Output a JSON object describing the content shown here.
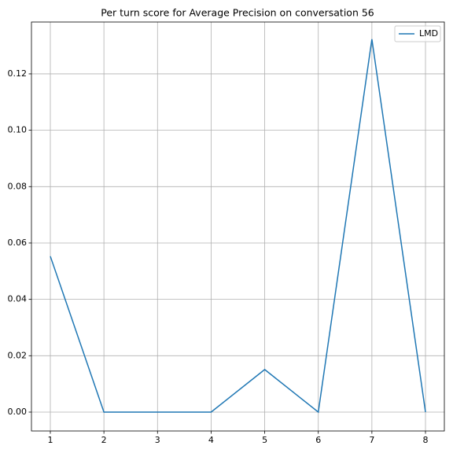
{
  "chart_data": {
    "type": "line",
    "title": "Per turn score for Average Precision on conversation 56",
    "x": [
      1,
      2,
      3,
      4,
      5,
      6,
      7,
      8
    ],
    "series": [
      {
        "name": "LMD",
        "color": "#1f77b4",
        "values": [
          0.0553,
          0,
          0,
          0,
          0.0151,
          0,
          0.1323,
          0
        ]
      }
    ],
    "xlim": [
      0.648,
      8.352
    ],
    "xticks": [
      1,
      2,
      3,
      4,
      5,
      6,
      7,
      8
    ],
    "ylim": [
      -0.0067,
      0.1384
    ],
    "yticks": [
      {
        "value": 0,
        "label": "0.00"
      },
      {
        "value": 0.02,
        "label": "0.02"
      },
      {
        "value": 0.04,
        "label": "0.04"
      },
      {
        "value": 0.06,
        "label": "0.06"
      },
      {
        "value": 0.08,
        "label": "0.08"
      },
      {
        "value": 0.1,
        "label": "0.10"
      },
      {
        "value": 0.12,
        "label": "0.12"
      }
    ],
    "grid": true,
    "legend": "upper-right"
  }
}
